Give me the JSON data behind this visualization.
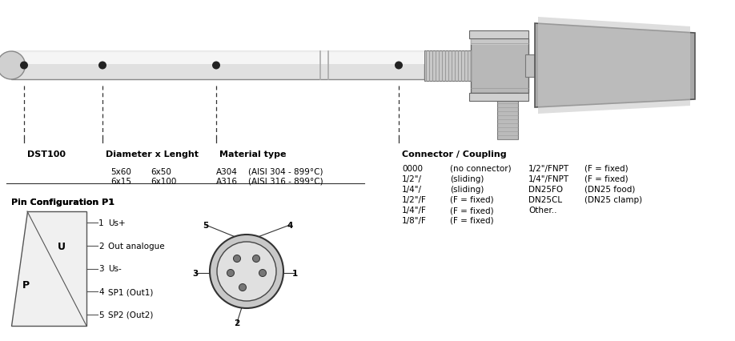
{
  "bg_color": "#ffffff",
  "labels": {
    "dst100": "DST100",
    "diameter": "Diameter x Lenght",
    "material": "Material type",
    "connector": "Connector / Coupling",
    "pin_config": "Pin Configuration P1"
  },
  "diameter_values": [
    [
      "5x60",
      "6x50"
    ],
    [
      "6x15",
      "6x100"
    ]
  ],
  "material_values": [
    [
      "A304",
      "(AISI 304 - 899°C)"
    ],
    [
      "A316",
      "(AISI 316 - 899°C)"
    ]
  ],
  "connector_col1": [
    "0000",
    "1/2\"/",
    "1/4\"/",
    "1/2\"/F",
    "1/4\"/F",
    "1/8\"/F"
  ],
  "connector_col2": [
    "(no connector)",
    "(sliding)",
    "(sliding)",
    "(F = fixed)",
    "(F = fixed)",
    "(F = fixed)"
  ],
  "connector_col3": [
    "1/2\"/FNPT",
    "1/4\"/FNPT",
    "DN25FO",
    "DN25CL",
    "Other.."
  ],
  "connector_col4": [
    "(F = fixed)",
    "(F = fixed)",
    "(DN25 food)",
    "(DN25 clamp)",
    ""
  ],
  "pin_nums": [
    "1",
    "2",
    "3",
    "4",
    "5"
  ],
  "pin_lbls": [
    "Us+",
    "Out analogue",
    "Us-",
    "SP1 (Out1)",
    "SP2 (Out2)"
  ],
  "pin_P": "P",
  "pin_U": "U"
}
